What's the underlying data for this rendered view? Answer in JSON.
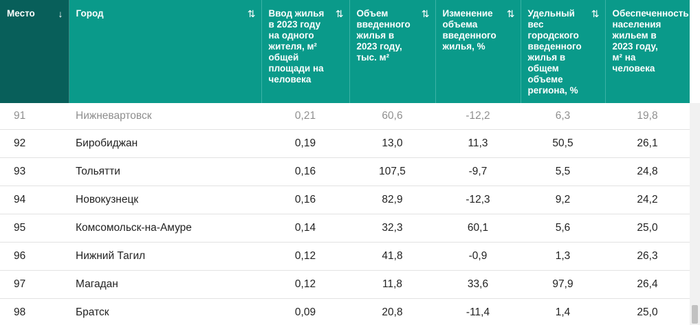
{
  "headers": [
    {
      "label": "Место",
      "sort": "↓"
    },
    {
      "label": "Город",
      "sort": "⇅"
    },
    {
      "label": "Ввод жилья в 2023 году на одного жителя, м² общей площади на человека",
      "sort": "⇅"
    },
    {
      "label": "Объем введенного жилья в 2023 году, тыс. м²",
      "sort": "⇅"
    },
    {
      "label": "Изменение объема введенного жилья, %",
      "sort": "⇅"
    },
    {
      "label": "Удельный вес городского введенного жилья в общем объеме региона, %",
      "sort": "⇅"
    },
    {
      "label": "Обеспеченность населения жильем в 2023 году, м² на человека",
      "sort": "⇅"
    }
  ],
  "rows": [
    {
      "rank": "91",
      "city": "Нижневартовск",
      "per_capita": "0,21",
      "volume": "60,6",
      "change": "-12,2",
      "share": "6,3",
      "provision": "19,8"
    },
    {
      "rank": "92",
      "city": "Биробиджан",
      "per_capita": "0,19",
      "volume": "13,0",
      "change": "11,3",
      "share": "50,5",
      "provision": "26,1"
    },
    {
      "rank": "93",
      "city": "Тольятти",
      "per_capita": "0,16",
      "volume": "107,5",
      "change": "-9,7",
      "share": "5,5",
      "provision": "24,8"
    },
    {
      "rank": "94",
      "city": "Новокузнецк",
      "per_capita": "0,16",
      "volume": "82,9",
      "change": "-12,3",
      "share": "9,2",
      "provision": "24,2"
    },
    {
      "rank": "95",
      "city": "Комсомольск-на-Амуре",
      "per_capita": "0,14",
      "volume": "32,3",
      "change": "60,1",
      "share": "5,6",
      "provision": "25,0"
    },
    {
      "rank": "96",
      "city": "Нижний Тагил",
      "per_capita": "0,12",
      "volume": "41,8",
      "change": "-0,9",
      "share": "1,3",
      "provision": "26,3"
    },
    {
      "rank": "97",
      "city": "Магадан",
      "per_capita": "0,12",
      "volume": "11,8",
      "change": "33,6",
      "share": "97,9",
      "provision": "26,4"
    },
    {
      "rank": "98",
      "city": "Братск",
      "per_capita": "0,09",
      "volume": "20,8",
      "change": "-11,4",
      "share": "1,4",
      "provision": "25,0"
    }
  ],
  "colors": {
    "header": "#0a9a8a",
    "header_active": "#085f5a"
  }
}
